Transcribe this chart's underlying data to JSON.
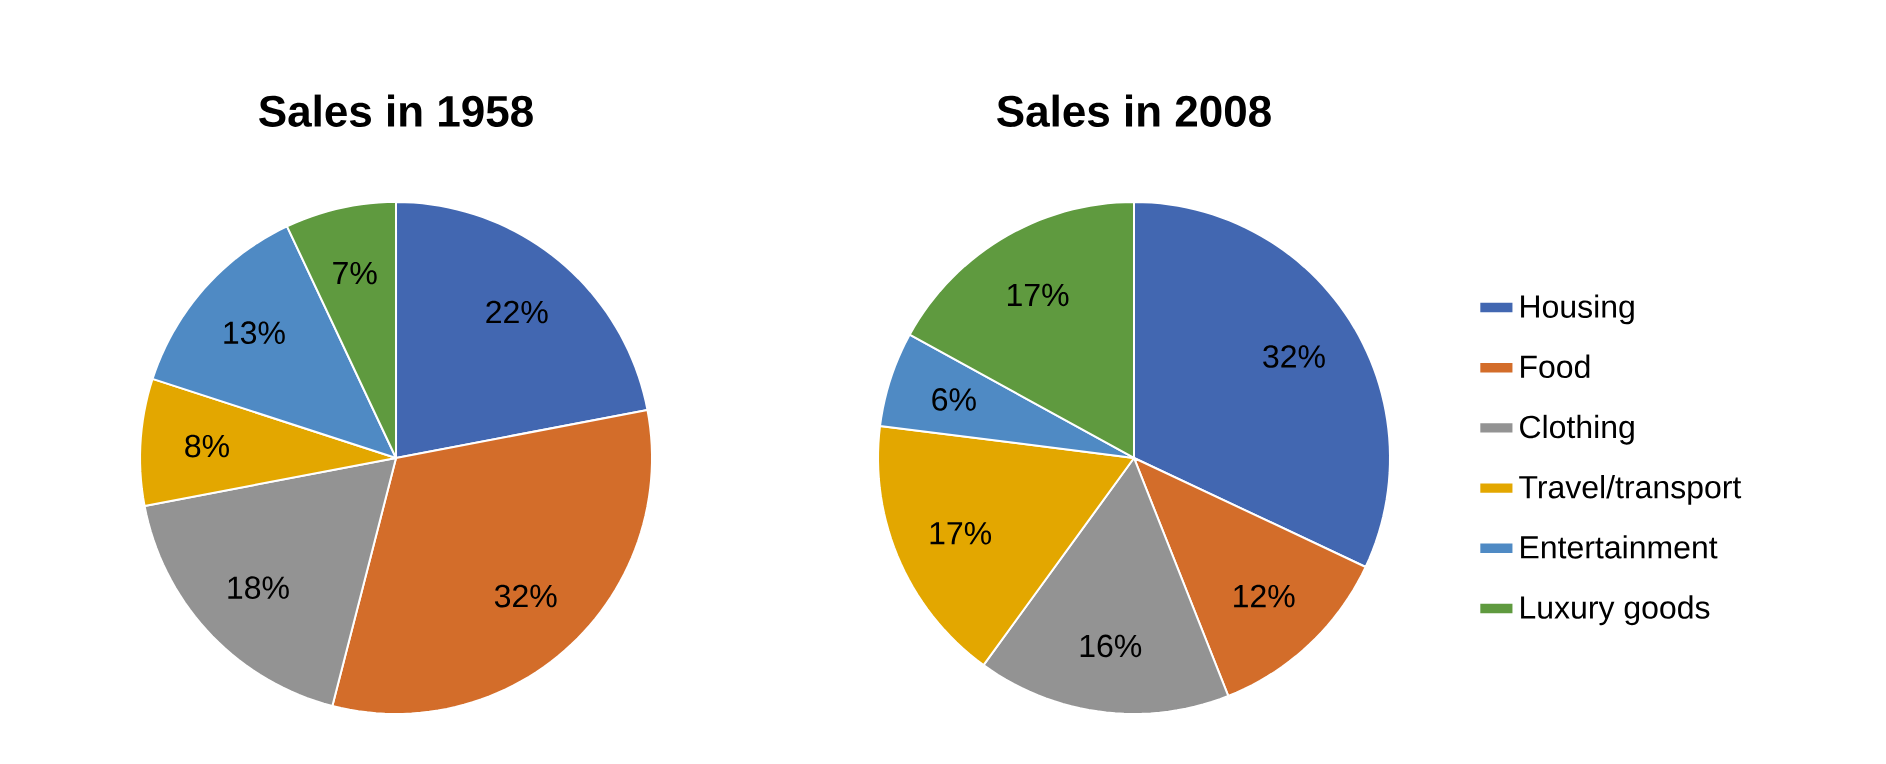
{
  "chart_data": [
    {
      "type": "pie",
      "title": "Sales in 1958",
      "legend": false,
      "categories": [
        null,
        null,
        null,
        null,
        null,
        null
      ],
      "values": [
        22,
        32,
        18,
        8,
        13,
        7
      ],
      "value_labels": [
        "22%",
        "32%",
        "18%",
        "8%",
        "13%",
        "7%"
      ],
      "colors": [
        "#4267b1",
        "#d36d2a",
        "#939393",
        "#e3a700",
        "#4f8ac4",
        "#5f9a3f"
      ]
    },
    {
      "type": "pie",
      "title": "Sales in 2008",
      "legend": "right",
      "categories": [
        "Housing",
        "Food",
        "Clothing",
        "Travel/transport",
        "Entertainment",
        "Luxury goods"
      ],
      "values": [
        32,
        12,
        16,
        17,
        6,
        17
      ],
      "value_labels": [
        "32%",
        "12%",
        "16%",
        "17%",
        "6%",
        "17%"
      ],
      "colors": [
        "#4267b1",
        "#d36d2a",
        "#939393",
        "#e3a700",
        "#4f8ac4",
        "#5f9a3f"
      ]
    }
  ]
}
